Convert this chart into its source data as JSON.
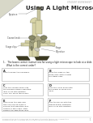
{
  "background_color": "#ffffff",
  "header_text": "STUDENT WORKSHEET",
  "title": "roscope",
  "title_full": "Using A Light Microscope",
  "question_text": "1.   The boxes contain instructions for using a light microscope to look at a slide.",
  "question_subtext": "What is the correct order?",
  "boxes": [
    {
      "id": "A",
      "text": "Look through the eyepiece."
    },
    {
      "id": "B",
      "text": "Place the slide on the stage and fasten it with the stage clips."
    },
    {
      "id": "C",
      "text": "Turn the coarse knob until the medium power objective lens clicks into position. Then can focus the image."
    },
    {
      "id": "D",
      "text": "Turn the focus knob until the image is sharp and clear."
    },
    {
      "id": "E",
      "text": "Look from the side and turn the coarse knob to ensure that objective lens comes to the stage. Stop before the objectives lens touches the slide."
    },
    {
      "id": "F",
      "text": "Turn the barrel with the lowest power objective lens clicks into position."
    }
  ],
  "footer_text": "Reproduction for the purposes of use associated with this lesson is permitted.",
  "footer_text2": "Reproducing for classroom use only with the authors permission.",
  "page_number": "1",
  "mic_body_color": "#d8d4a8",
  "mic_dark_color": "#5a5840",
  "mic_base_color": "#3a3820",
  "label_eyepiece": "Eyepiece",
  "label_coarse": "Coarse knob",
  "label_stageclips": "Stage clips",
  "label_stage": "Stage",
  "label_objective": "Objective"
}
